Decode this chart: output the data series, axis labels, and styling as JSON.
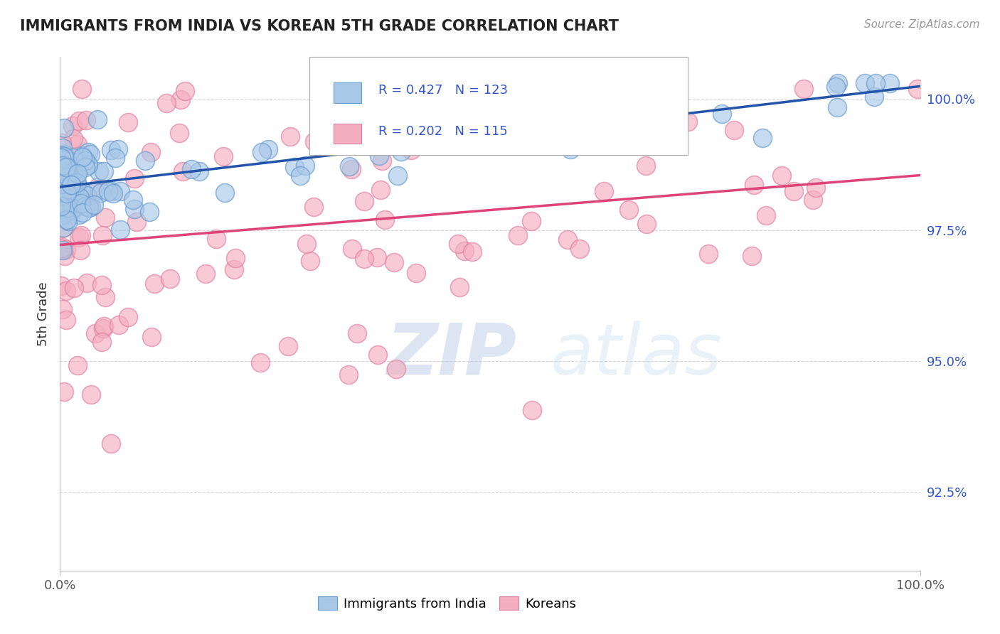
{
  "title": "IMMIGRANTS FROM INDIA VS KOREAN 5TH GRADE CORRELATION CHART",
  "source_text": "Source: ZipAtlas.com",
  "ylabel": "5th Grade",
  "blue_R": 0.427,
  "blue_N": 123,
  "pink_R": 0.202,
  "pink_N": 115,
  "legend_label_blue": "Immigrants from India",
  "legend_label_pink": "Koreans",
  "blue_color": "#a8c8e8",
  "pink_color": "#f4aec0",
  "blue_edge_color": "#6699cc",
  "pink_edge_color": "#e080a0",
  "blue_line_color": "#2255aa",
  "pink_line_color": "#dd4477",
  "watermark_color": "#c8d8f0",
  "watermark_italic_color": "#b0c4e0",
  "background_color": "#ffffff",
  "title_color": "#222222",
  "grid_color": "#cccccc",
  "ytick_color": "#3355cc",
  "xtick_color": "#555555",
  "ymin": 91.0,
  "ymax": 100.8,
  "xmin": 0.0,
  "xmax": 100.0,
  "yticks": [
    92.5,
    95.0,
    97.5,
    100.0
  ],
  "ytick_labels": [
    "92.5%",
    "95.0%",
    "97.5%",
    "100.0%"
  ]
}
